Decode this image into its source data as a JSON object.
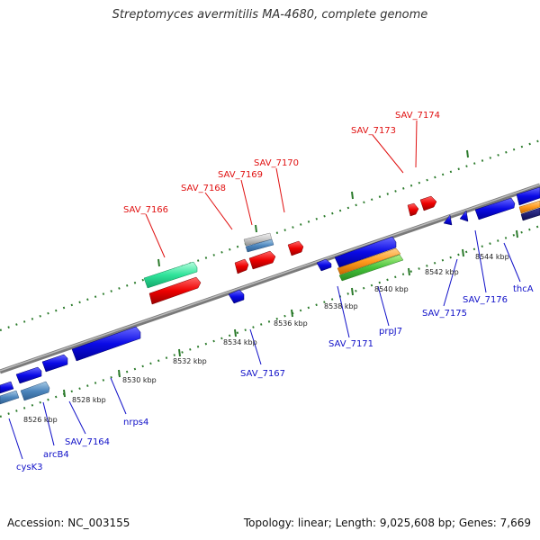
{
  "title": "Streptomyces avermitilis MA-4680, complete genome",
  "accession": "Accession: NC_003155",
  "topology": "Topology: linear; Length: 9,025,608 bp; Genes: 7,669",
  "scale_labels": [
    "8526 kbp",
    "8528 kbp",
    "8530 kbp",
    "8532 kbp",
    "8534 kbp",
    "8536 kbp",
    "8538 kbp",
    "8540 kbp",
    "8542 kbp",
    "8544 kbp"
  ],
  "top_labels": [
    "SAV_7166",
    "SAV_7168",
    "SAV_7169",
    "SAV_7170",
    "SAV_7173",
    "SAV_7174"
  ],
  "bottom_labels": [
    "cysK3",
    "arcB4",
    "SAV_7164",
    "nrps4",
    "SAV_7167",
    "SAV_7171",
    "prpJ7",
    "SAV_7175",
    "SAV_7176",
    "thcA"
  ],
  "colors": {
    "forward_label": "#e01010",
    "reverse_label": "#1010c8",
    "backbone": "#8c8c8c",
    "ticks": "#2a7a2a"
  }
}
